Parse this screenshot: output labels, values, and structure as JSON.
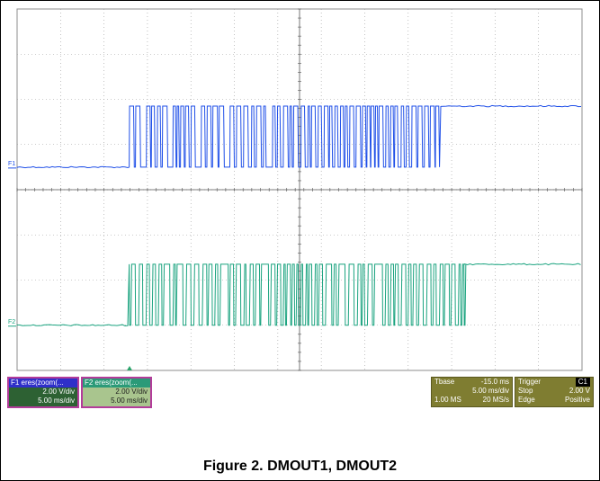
{
  "scope": {
    "traces": [
      {
        "label": "F1",
        "color": "#1f4fe8",
        "low_div": 4.5,
        "high_div": 5.85,
        "start_div": 2.58,
        "end_div": 9.75,
        "edge_shape": "slow_fall"
      },
      {
        "label": "F2",
        "color": "#1aa37f",
        "low_div": 1.0,
        "high_div": 2.35,
        "start_div": 2.58,
        "end_div": 10.3,
        "edge_shape": "slow_rise"
      }
    ],
    "trigger_marker_color": "#2aa36b",
    "grid": {
      "h_divs": 13,
      "v_divs": 8,
      "dots": true
    }
  },
  "panels": {
    "f1": {
      "title": "F1  eres(zoom(...",
      "scale": "2.00 V/div",
      "time": "5.00 ms/div"
    },
    "f2": {
      "title": "F2  eres(zoom(...",
      "scale": "2.00 V/div",
      "time": "5.00 ms/div"
    },
    "tbase": {
      "title": "Tbase",
      "offset": "-15.0 ms",
      "time": "5.00 ms/div",
      "points": "1.00 MS",
      "rate": "20 MS/s"
    },
    "trigger": {
      "title": "Trigger",
      "channel": "C1",
      "mode": "Stop",
      "level": "2.00 V",
      "type": "Edge",
      "slope": "Positive"
    }
  },
  "caption": "Figure 2. DMOUT1, DMOUT2"
}
